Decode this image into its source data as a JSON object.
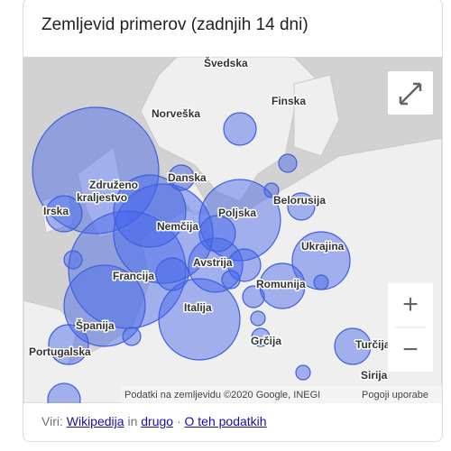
{
  "header": {
    "title": "Zemljevid primerov (zadnjih 14 dni)"
  },
  "map": {
    "labels": [
      "Švedska",
      "Finska",
      "Norveška",
      "Danska",
      "Združeno",
      "kraljestvo",
      "Irska",
      "Belorusija",
      "Poljska",
      "Nemčija",
      "Ukrajina",
      "Avstrija",
      "Francija",
      "Romunija",
      "Italija",
      "Španija",
      "Portugalska",
      "Grčija",
      "Turčija",
      "Sirija"
    ],
    "zoom_in": "+",
    "zoom_out": "−",
    "attribution": "Podatki na zemljevidu ©2020 Google, INEGI",
    "terms": "Pogoji uporabe"
  },
  "footer": {
    "sources": "Viri:",
    "wikipedia": "Wikipedija",
    "and": "in",
    "other": "drugo",
    "separator": "·",
    "about": "O teh podatkih"
  }
}
